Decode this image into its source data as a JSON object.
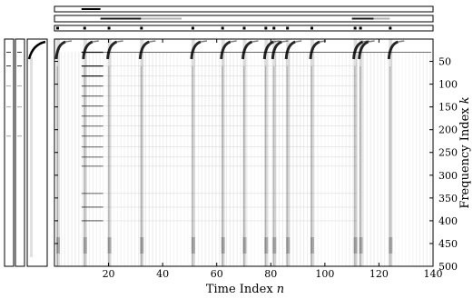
{
  "chart_data": {
    "type": "heatmap",
    "colormap": "grayscale",
    "xlabel": "Time Index",
    "xlabel_var": "n",
    "ylabel": "Frequency Index",
    "ylabel_var": "k",
    "xlim": [
      0,
      140
    ],
    "ylim": [
      1,
      500
    ],
    "x_ticks": [
      "20",
      "40",
      "60",
      "80",
      "100",
      "120",
      "140"
    ],
    "y_ticks": [
      "50",
      "100",
      "150",
      "200",
      "250",
      "300",
      "350",
      "400",
      "450",
      "500"
    ],
    "onsets": [
      1,
      11,
      20,
      32,
      51,
      62,
      70,
      78,
      81,
      86,
      95,
      111,
      113,
      124
    ],
    "top_strips": 3,
    "left_strips": 3
  }
}
